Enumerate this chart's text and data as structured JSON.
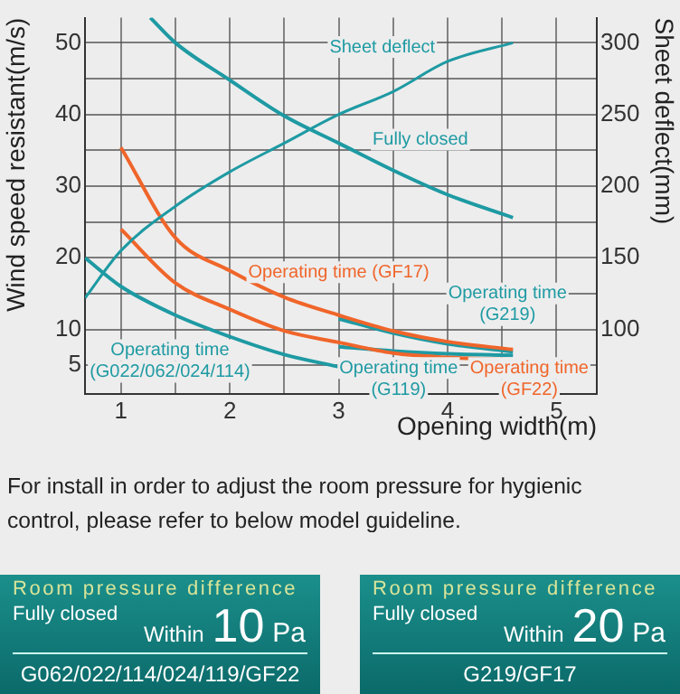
{
  "chart_data": [
    {
      "type": "line",
      "xlabel": "Opening width(m)",
      "ylabel": "Wind speed resistant(m/s)",
      "y2label": "Sheet deflect(mm)",
      "xlim": [
        0.67,
        5.37
      ],
      "xticks": [
        1,
        {
          "value": 1.5,
          "label": null
        },
        2,
        {
          "value": 2.5,
          "label": null
        },
        3,
        {
          "value": 3.5,
          "label": null
        },
        4,
        {
          "value": 4.5,
          "label": null
        },
        5
      ],
      "ylim": [
        1,
        53.5
      ],
      "yticks": [
        5,
        10,
        {
          "value": 15,
          "label": null
        },
        20,
        {
          "value": 25,
          "label": null
        },
        30,
        {
          "value": 35,
          "label": null
        },
        40,
        {
          "value": 45,
          "label": null
        },
        50
      ],
      "y2lim": [
        55,
        317.5
      ],
      "y2ticks": [
        100,
        150,
        200,
        250,
        300
      ],
      "grid": true,
      "legend": false,
      "marker": "none",
      "line_style": "solid",
      "series": [
        {
          "name": "Sheet deflect",
          "color": "#1e9aa3",
          "axis": "y2",
          "x": [
            0.67,
            1,
            1.5,
            2,
            2.5,
            3,
            3.5,
            4,
            4.6
          ],
          "values": [
            122,
            155,
            186,
            210,
            230,
            250,
            266,
            287,
            300
          ]
        },
        {
          "name": "Fully closed",
          "color": "#1e9aa3",
          "x": [
            1.27,
            1.5,
            2,
            2.5,
            3,
            3.5,
            4,
            4.6
          ],
          "values": [
            53.5,
            50,
            44.8,
            39.8,
            36,
            32.2,
            28.8,
            25.6
          ]
        },
        {
          "name": "Operating time (GF17)",
          "color": "#f0652a",
          "x": [
            1,
            1.5,
            2,
            2.5,
            3,
            3.5,
            4,
            4.6
          ],
          "values": [
            35.4,
            22.8,
            18.2,
            14.5,
            12,
            9.8,
            8.3,
            7.2
          ]
        },
        {
          "name": "Operating time (GF22)",
          "color": "#f0652a",
          "x": [
            1,
            1.5,
            2,
            2.5,
            3,
            3.5,
            4,
            4.6
          ],
          "values": [
            24,
            16.5,
            12.8,
            9.8,
            8.2,
            6.7,
            6.1,
            5.8
          ]
        },
        {
          "name": "Operating time (G022/062/024/114)",
          "color": "#1e9aa3",
          "x": [
            0.67,
            1,
            1.5,
            2,
            2.5,
            3
          ],
          "values": [
            20,
            16,
            12,
            9,
            6.5,
            4.8
          ]
        },
        {
          "name": "Operating time (G119)",
          "color": "#1e9aa3",
          "x": [
            3,
            3.5,
            4,
            4.6
          ],
          "values": [
            7.6,
            7,
            6.6,
            6.4
          ]
        },
        {
          "name": "Operating time (G219)",
          "color": "#1e9aa3",
          "x": [
            3,
            3.5,
            4,
            4.6
          ],
          "values": [
            11.5,
            9.5,
            8,
            6.9
          ]
        }
      ],
      "annotations": [
        "For install in order to adjust the room pressure for hygienic control, please refer to below model guideline."
      ]
    },
    {
      "type": "other",
      "title": "Room pressure difference",
      "annotations": [
        "Fully closed",
        "Within",
        "10",
        "Pa",
        "G062/022/114/024/119/GF22"
      ]
    },
    {
      "type": "other",
      "title": "Room pressure difference",
      "annotations": [
        "Fully closed",
        "Within",
        "20",
        "Pa",
        "G219/GF17"
      ]
    }
  ]
}
